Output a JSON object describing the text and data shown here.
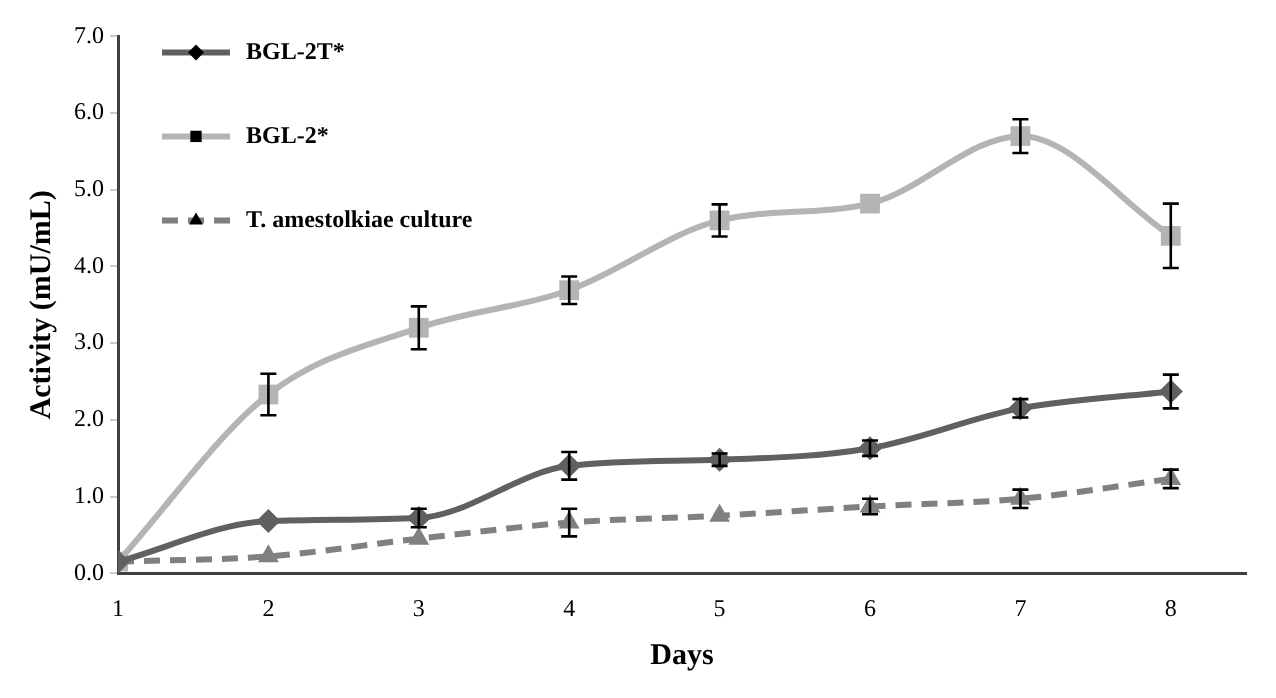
{
  "chart_data": {
    "type": "line",
    "xlabel": "Days",
    "ylabel": "Activity (mU/mL)",
    "x": [
      1,
      2,
      3,
      4,
      5,
      6,
      7,
      8
    ],
    "xlim": [
      1,
      8.5
    ],
    "xticks": [
      1,
      2,
      3,
      4,
      5,
      6,
      7,
      8
    ],
    "ylim": [
      0,
      7
    ],
    "yticks": [
      {
        "value": 0,
        "label": "0.0"
      },
      {
        "value": 1,
        "label": "1.0"
      },
      {
        "value": 2,
        "label": "2.0"
      },
      {
        "value": 3,
        "label": "3.0"
      },
      {
        "value": 4,
        "label": "4.0"
      },
      {
        "value": 5,
        "label": "5.0"
      },
      {
        "value": 6,
        "label": "6.0"
      },
      {
        "value": 7,
        "label": "7.0"
      }
    ],
    "grid": false,
    "legend": "top left",
    "series": [
      {
        "name": "BGL-2T*",
        "color": "#606060",
        "marker": "diamond",
        "line_style": "solid",
        "values": [
          0.15,
          0.68,
          0.72,
          1.4,
          1.48,
          1.63,
          2.15,
          2.37
        ],
        "errors": [
          null,
          null,
          0.12,
          0.18,
          0.08,
          0.1,
          0.12,
          0.22
        ]
      },
      {
        "name": "BGL-2*",
        "color": "#b4b4b4",
        "marker": "square",
        "line_style": "solid",
        "values": [
          0.15,
          2.33,
          3.2,
          3.69,
          4.6,
          4.82,
          5.7,
          4.4
        ],
        "errors": [
          null,
          0.27,
          0.28,
          0.18,
          0.21,
          null,
          0.22,
          0.42
        ]
      },
      {
        "name": "T. amestolkiae culture",
        "color": "#808080",
        "marker": "triangle",
        "line_style": "dashed",
        "values": [
          0.15,
          0.22,
          0.45,
          0.66,
          0.75,
          0.87,
          0.97,
          1.23
        ],
        "errors": [
          null,
          null,
          null,
          0.18,
          null,
          0.1,
          0.12,
          0.12
        ]
      }
    ]
  }
}
